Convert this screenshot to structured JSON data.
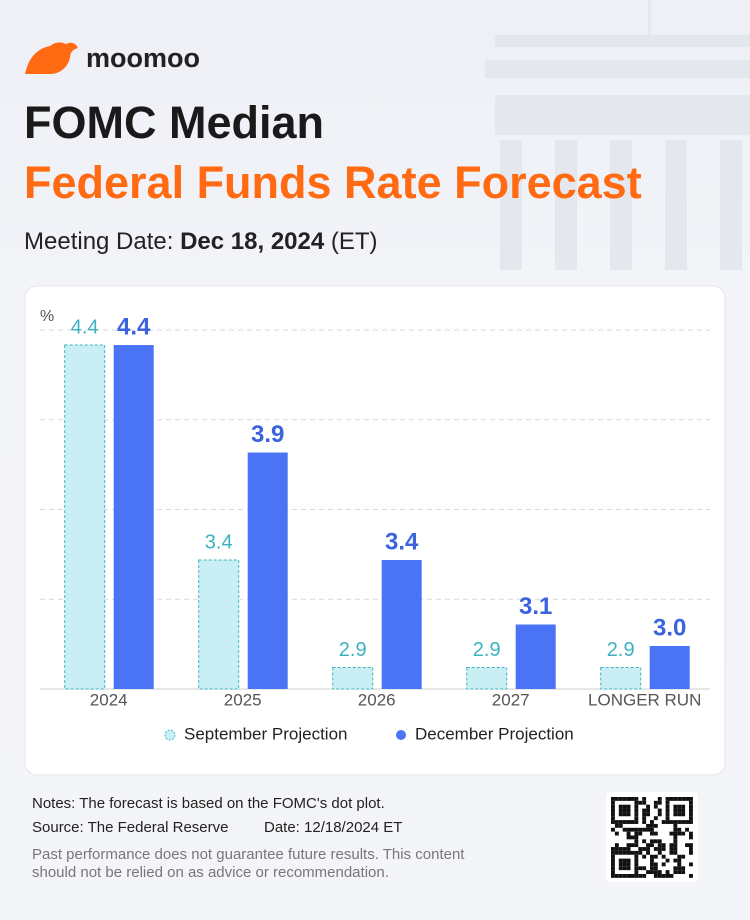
{
  "brand": "moomoo",
  "headline": {
    "title": "FOMC Median",
    "subtitle": "Federal Funds Rate Forecast",
    "meeting_label": "Meeting Date:",
    "meeting_date": "Dec 18, 2024",
    "meeting_tz": "(ET)"
  },
  "chart_data": {
    "type": "bar",
    "y_label": "%",
    "categories": [
      "2024",
      "2025",
      "2026",
      "2027",
      "LONGER RUN"
    ],
    "series": [
      {
        "name": "September Projection",
        "color": "#c9eef3",
        "values": [
          4.4,
          3.4,
          2.9,
          2.9,
          2.9
        ]
      },
      {
        "name": "December Projection",
        "color": "#4a73f5",
        "values": [
          4.4,
          3.9,
          3.4,
          3.1,
          3.0
        ],
        "value_labels": [
          "4.4",
          "3.9",
          "3.4",
          "3.1",
          "3.0"
        ]
      }
    ],
    "ylim": [
      2.8,
      4.47
    ],
    "grid": true,
    "legend": "bottom"
  },
  "footer": {
    "notes": "Notes: The forecast is based on the FOMC's dot plot.",
    "source": "Source: The Federal Reserve",
    "date": "Date: 12/18/2024 ET",
    "disclaimer": [
      "Past performance does not guarantee future results. This content",
      "should not be relied on as advice or recommendation."
    ]
  }
}
